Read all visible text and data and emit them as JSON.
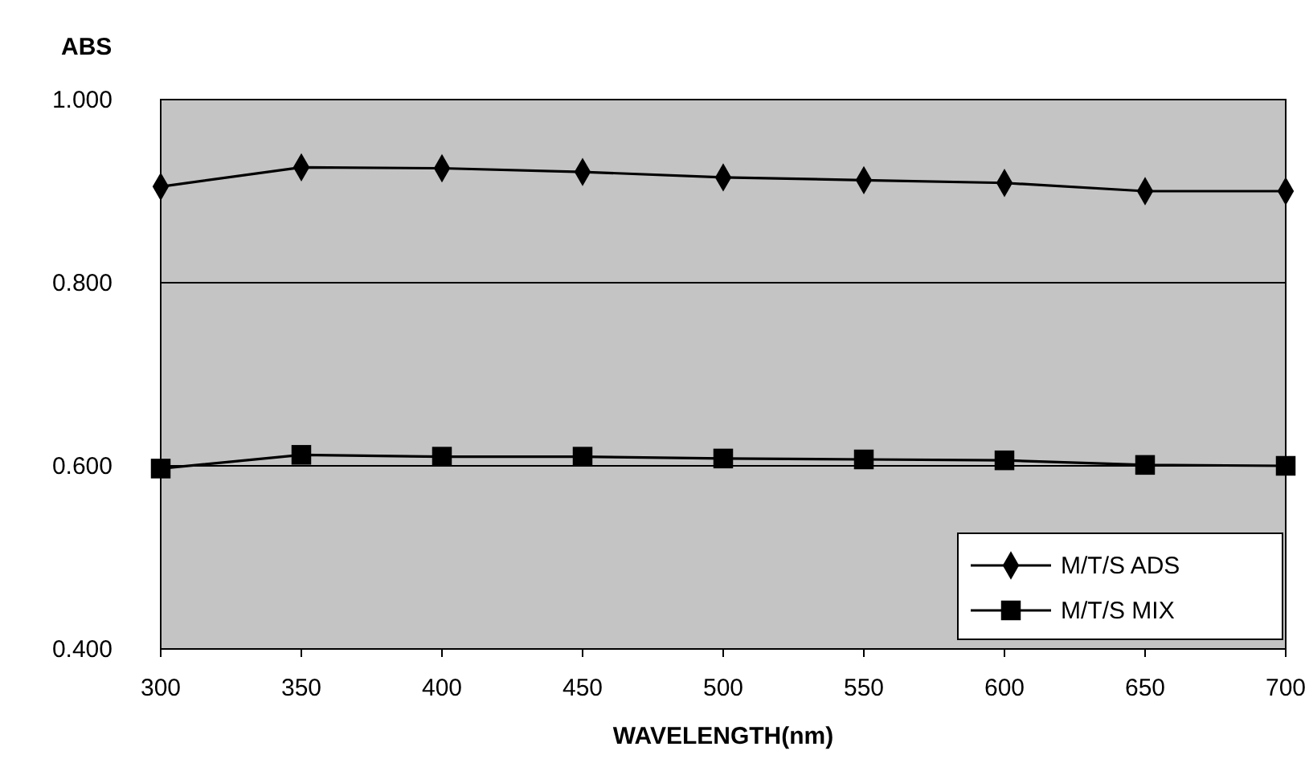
{
  "chart_data": {
    "type": "line",
    "xlabel": "WAVELENGTH(nm)",
    "ylabel": "ABS",
    "x": [
      300,
      350,
      400,
      450,
      500,
      550,
      600,
      650,
      700
    ],
    "series": [
      {
        "name": "M/T/S ADS",
        "color": "#000000",
        "marker": "diamond",
        "values": [
          0.905,
          0.926,
          0.925,
          0.921,
          0.915,
          0.912,
          0.909,
          0.9,
          0.9
        ]
      },
      {
        "name": "M/T/S MIX",
        "color": "#000000",
        "marker": "square",
        "values": [
          0.597,
          0.612,
          0.61,
          0.61,
          0.608,
          0.607,
          0.606,
          0.601,
          0.6
        ]
      }
    ],
    "xlim": [
      300,
      700
    ],
    "xticks": [
      300,
      350,
      400,
      450,
      500,
      550,
      600,
      650,
      700
    ],
    "ylim": [
      0.4,
      1.0
    ],
    "yticks": [
      {
        "value": 0.4,
        "label": "0.400"
      },
      {
        "value": 0.6,
        "label": "0.600"
      },
      {
        "value": 0.8,
        "label": "0.800"
      },
      {
        "value": 1.0,
        "label": "1.000"
      }
    ],
    "grid": "y",
    "legend": "bottom right",
    "line_style": "solid"
  }
}
